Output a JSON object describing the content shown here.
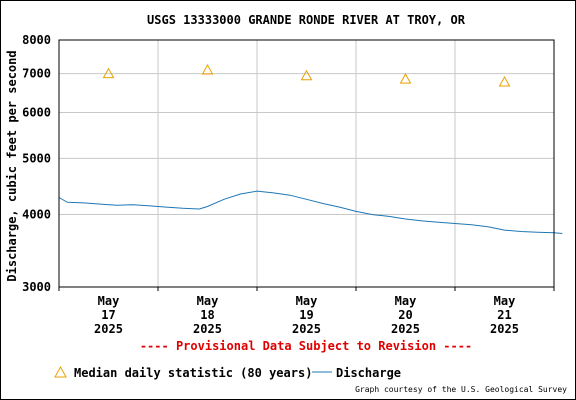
{
  "chart_data": {
    "type": "line",
    "title": "USGS 13333000 GRANDE RONDE RIVER AT TROY, OR",
    "ylabel": "Discharge, cubic feet per second",
    "y_scale": "log",
    "ylim": [
      3000,
      8000
    ],
    "y_ticks": [
      "3000",
      "4000",
      "5000",
      "6000",
      "7000",
      "8000"
    ],
    "x_days": [
      "2025-05-17",
      "2025-05-18",
      "2025-05-19",
      "2025-05-20",
      "2025-05-21"
    ],
    "x_tick_labels": [
      [
        "May",
        "17",
        "2025"
      ],
      [
        "May",
        "18",
        "2025"
      ],
      [
        "May",
        "19",
        "2025"
      ],
      [
        "May",
        "20",
        "2025"
      ],
      [
        "May",
        "21",
        "2025"
      ]
    ],
    "grid": true,
    "legend_position": "bottom",
    "series": [
      {
        "name": "Median daily statistic (80 years)",
        "kind": "marker",
        "color": "#e8a000",
        "points": [
          {
            "x": "2025-05-17",
            "y": 7000
          },
          {
            "x": "2025-05-18",
            "y": 7100
          },
          {
            "x": "2025-05-19",
            "y": 6940
          },
          {
            "x": "2025-05-20",
            "y": 6850
          },
          {
            "x": "2025-05-21",
            "y": 6770
          }
        ]
      },
      {
        "name": "Discharge",
        "kind": "line",
        "color": "#1f77b4",
        "points": [
          {
            "x": "2025-05-16 12:00",
            "y": 4280
          },
          {
            "x": "2025-05-16 14:00",
            "y": 4200
          },
          {
            "x": "2025-05-16 18:00",
            "y": 4190
          },
          {
            "x": "2025-05-16 22:00",
            "y": 4170
          },
          {
            "x": "2025-05-17 02:00",
            "y": 4150
          },
          {
            "x": "2025-05-17 06:00",
            "y": 4160
          },
          {
            "x": "2025-05-17 10:00",
            "y": 4140
          },
          {
            "x": "2025-05-17 14:00",
            "y": 4120
          },
          {
            "x": "2025-05-17 18:00",
            "y": 4100
          },
          {
            "x": "2025-05-17 22:00",
            "y": 4090
          },
          {
            "x": "2025-05-18 00:00",
            "y": 4130
          },
          {
            "x": "2025-05-18 04:00",
            "y": 4250
          },
          {
            "x": "2025-05-18 08:00",
            "y": 4340
          },
          {
            "x": "2025-05-18 12:00",
            "y": 4390
          },
          {
            "x": "2025-05-18 16:00",
            "y": 4360
          },
          {
            "x": "2025-05-18 20:00",
            "y": 4320
          },
          {
            "x": "2025-05-19 00:00",
            "y": 4250
          },
          {
            "x": "2025-05-19 04:00",
            "y": 4180
          },
          {
            "x": "2025-05-19 08:00",
            "y": 4120
          },
          {
            "x": "2025-05-19 12:00",
            "y": 4050
          },
          {
            "x": "2025-05-19 16:00",
            "y": 4000
          },
          {
            "x": "2025-05-19 20:00",
            "y": 3970
          },
          {
            "x": "2025-05-20 00:00",
            "y": 3930
          },
          {
            "x": "2025-05-20 04:00",
            "y": 3900
          },
          {
            "x": "2025-05-20 08:00",
            "y": 3880
          },
          {
            "x": "2025-05-20 12:00",
            "y": 3860
          },
          {
            "x": "2025-05-20 16:00",
            "y": 3840
          },
          {
            "x": "2025-05-20 20:00",
            "y": 3810
          },
          {
            "x": "2025-05-21 00:00",
            "y": 3760
          },
          {
            "x": "2025-05-21 04:00",
            "y": 3740
          },
          {
            "x": "2025-05-21 08:00",
            "y": 3730
          },
          {
            "x": "2025-05-21 12:00",
            "y": 3720
          },
          {
            "x": "2025-05-21 14:00",
            "y": 3710
          }
        ]
      }
    ]
  },
  "notice": {
    "text": "---- Provisional Data Subject to Revision ----",
    "color": "#e00000"
  },
  "credit": "Graph courtesy of the U.S. Geological Survey"
}
